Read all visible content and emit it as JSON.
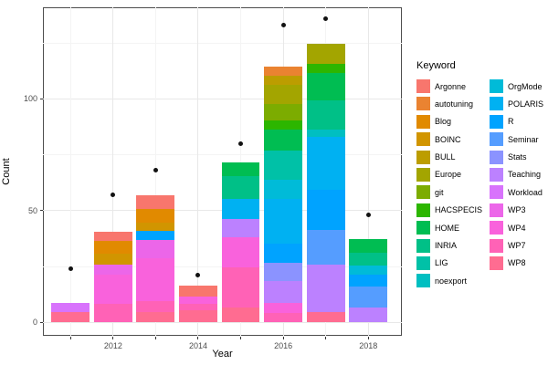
{
  "chart_data": {
    "type": "bar",
    "stacked": true,
    "title": "",
    "xlabel": "Year",
    "ylabel": "Count",
    "legend_title": "Keyword",
    "legend_position": "right",
    "grid": true,
    "xlim": [
      2010.35,
      2018.79
    ],
    "ylim": [
      -6,
      141
    ],
    "y_ticks": [
      0,
      50,
      100
    ],
    "y_minor": [
      25,
      75,
      125
    ],
    "x_tick_years": [
      2011,
      2012,
      2013,
      2014,
      2015,
      2016,
      2017,
      2018
    ],
    "x_tick_labels": [
      "",
      "2012",
      "",
      "2014",
      "",
      "2016",
      "",
      "2018"
    ],
    "bar_width_years": 0.9,
    "keywords": [
      {
        "label": "Argonne",
        "color": "#F8766D"
      },
      {
        "label": "autotuning",
        "color": "#EA8331"
      },
      {
        "label": "Blog",
        "color": "#E18A00"
      },
      {
        "label": "BOINC",
        "color": "#D19500"
      },
      {
        "label": "BULL",
        "color": "#BC9D00"
      },
      {
        "label": "Europe",
        "color": "#A3A500"
      },
      {
        "label": "git",
        "color": "#7CAC00"
      },
      {
        "label": "HACSPECIS",
        "color": "#2CB600"
      },
      {
        "label": "HOME",
        "color": "#00BD52"
      },
      {
        "label": "INRIA",
        "color": "#00C087"
      },
      {
        "label": "LIG",
        "color": "#00C1A7"
      },
      {
        "label": "noexport",
        "color": "#00BFC1"
      },
      {
        "label": "OrgMode",
        "color": "#00BBD8"
      },
      {
        "label": "POLARIS",
        "color": "#00B1F2"
      },
      {
        "label": "R",
        "color": "#00A3FF"
      },
      {
        "label": "Seminar",
        "color": "#559DFF"
      },
      {
        "label": "Stats",
        "color": "#8B93FF"
      },
      {
        "label": "Teaching",
        "color": "#BC81FF"
      },
      {
        "label": "Workload",
        "color": "#D873FC"
      },
      {
        "label": "WP3",
        "color": "#EC66E9"
      },
      {
        "label": "WP4",
        "color": "#F962DC"
      },
      {
        "label": "WP7",
        "color": "#FF62B6"
      },
      {
        "label": "WP8",
        "color": "#FF6C91"
      }
    ],
    "bars": [
      {
        "year": 2011,
        "segments": [
          {
            "keyword": "WP8",
            "value": 4.8
          },
          {
            "keyword": "Workload",
            "value": 4.1
          }
        ]
      },
      {
        "year": 2012,
        "segments": [
          {
            "keyword": "WP7",
            "value": 8.2
          },
          {
            "keyword": "WP4",
            "value": 13.2
          },
          {
            "keyword": "WP3",
            "value": 4.5
          },
          {
            "keyword": "BOINC",
            "value": 4.8
          },
          {
            "keyword": "Blog",
            "value": 5.8
          },
          {
            "keyword": "Argonne",
            "value": 4.1
          }
        ]
      },
      {
        "year": 2013,
        "segments": [
          {
            "keyword": "WP8",
            "value": 4.8
          },
          {
            "keyword": "WP7",
            "value": 4.8
          },
          {
            "keyword": "WP4",
            "value": 19.2
          },
          {
            "keyword": "WP3",
            "value": 8.2
          },
          {
            "keyword": "R",
            "value": 4.1
          },
          {
            "keyword": "BOINC",
            "value": 3.4
          },
          {
            "keyword": "Blog",
            "value": 6.1
          },
          {
            "keyword": "Argonne",
            "value": 6.1
          }
        ]
      },
      {
        "year": 2014,
        "segments": [
          {
            "keyword": "WP8",
            "value": 5.4
          },
          {
            "keyword": "WP7",
            "value": 2.7
          },
          {
            "keyword": "WP4",
            "value": 3.3
          },
          {
            "keyword": "Argonne",
            "value": 4.9
          }
        ]
      },
      {
        "year": 2015,
        "segments": [
          {
            "keyword": "WP8",
            "value": 6.7
          },
          {
            "keyword": "WP7",
            "value": 17.8
          },
          {
            "keyword": "WP4",
            "value": 13.6
          },
          {
            "keyword": "Teaching",
            "value": 8.2
          },
          {
            "keyword": "POLARIS",
            "value": 8.9
          },
          {
            "keyword": "INRIA",
            "value": 10.2
          },
          {
            "keyword": "HOME",
            "value": 6.1
          }
        ]
      },
      {
        "year": 2016,
        "segments": [
          {
            "keyword": "WP7",
            "value": 4.1
          },
          {
            "keyword": "WP4",
            "value": 4.7
          },
          {
            "keyword": "Teaching",
            "value": 9.5
          },
          {
            "keyword": "Stats",
            "value": 8.2
          },
          {
            "keyword": "R",
            "value": 8.8
          },
          {
            "keyword": "POLARIS",
            "value": 19.8
          },
          {
            "keyword": "OrgMode",
            "value": 8.8
          },
          {
            "keyword": "LIG",
            "value": 12.9
          },
          {
            "keyword": "HOME",
            "value": 9.5
          },
          {
            "keyword": "HACSPECIS",
            "value": 4.1
          },
          {
            "keyword": "git",
            "value": 7.5
          },
          {
            "keyword": "Europe",
            "value": 8.2
          },
          {
            "keyword": "BULL",
            "value": 4.3
          },
          {
            "keyword": "autotuning",
            "value": 4.1
          }
        ]
      },
      {
        "year": 2017,
        "segments": [
          {
            "keyword": "WP8",
            "value": 4.8
          },
          {
            "keyword": "Teaching",
            "value": 21.1
          },
          {
            "keyword": "Seminar",
            "value": 15.6
          },
          {
            "keyword": "R",
            "value": 17.7
          },
          {
            "keyword": "POLARIS",
            "value": 23.8
          },
          {
            "keyword": "noexport",
            "value": 3.4
          },
          {
            "keyword": "INRIA",
            "value": 12.9
          },
          {
            "keyword": "HOME",
            "value": 12.2
          },
          {
            "keyword": "HACSPECIS",
            "value": 4.1
          },
          {
            "keyword": "Europe",
            "value": 8.9
          }
        ]
      },
      {
        "year": 2018,
        "segments": [
          {
            "keyword": "Teaching",
            "value": 6.6
          },
          {
            "keyword": "Seminar",
            "value": 9.5
          },
          {
            "keyword": "R",
            "value": 5.4
          },
          {
            "keyword": "OrgMode",
            "value": 4.1
          },
          {
            "keyword": "INRIA",
            "value": 5.4
          },
          {
            "keyword": "HOME",
            "value": 6.1
          }
        ]
      }
    ],
    "points": [
      {
        "year": 2011,
        "count": 24
      },
      {
        "year": 2012,
        "count": 57
      },
      {
        "year": 2013,
        "count": 68
      },
      {
        "year": 2014,
        "count": 21
      },
      {
        "year": 2015,
        "count": 80
      },
      {
        "year": 2016,
        "count": 133
      },
      {
        "year": 2017,
        "count": 136
      },
      {
        "year": 2018,
        "count": 48
      }
    ]
  }
}
